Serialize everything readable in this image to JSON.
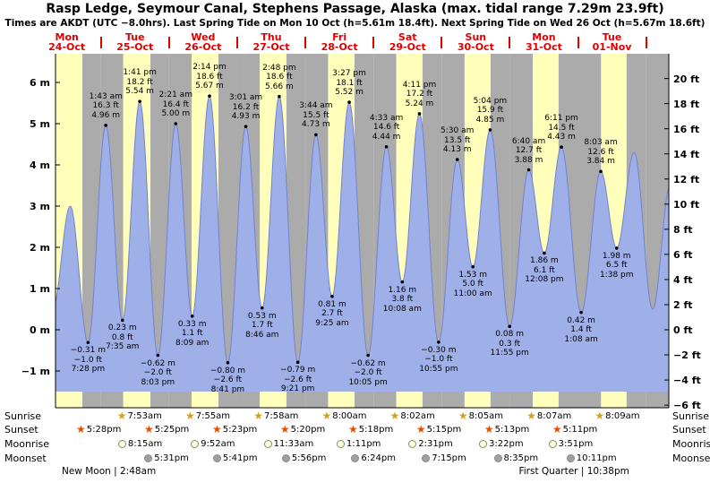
{
  "header": {
    "title": "Rasp Ledge, Seymour Canal, Stephens Passage, Alaska (max. tidal range 7.29m 23.9ft)",
    "subtitle": "Times are AKDT (UTC −8.0hrs). Last Spring Tide on Mon 10 Oct (h=5.61m 18.4ft). Next Spring Tide on Wed 26 Oct (h=5.67m 18.6ft)"
  },
  "chart_data": {
    "type": "area",
    "title": "Tide height forecast with day/night bands",
    "days": [
      {
        "dow": "Mon",
        "date": "24-Oct"
      },
      {
        "dow": "Tue",
        "date": "25-Oct"
      },
      {
        "dow": "Wed",
        "date": "26-Oct"
      },
      {
        "dow": "Thu",
        "date": "27-Oct"
      },
      {
        "dow": "Fri",
        "date": "28-Oct"
      },
      {
        "dow": "Sat",
        "date": "29-Oct"
      },
      {
        "dow": "Sun",
        "date": "30-Oct"
      },
      {
        "dow": "Mon",
        "date": "31-Oct"
      },
      {
        "dow": "Tue",
        "date": "01-Nov"
      }
    ],
    "y_axis_left": [
      {
        "v": 6,
        "label": "6 m"
      },
      {
        "v": 5,
        "label": "5 m"
      },
      {
        "v": 4,
        "label": "4 m"
      },
      {
        "v": 3,
        "label": "3 m"
      },
      {
        "v": 2,
        "label": "2 m"
      },
      {
        "v": 1,
        "label": "1 m"
      },
      {
        "v": 0,
        "label": "0 m"
      },
      {
        "v": -1,
        "label": "−1 m"
      }
    ],
    "y_axis_right": [
      {
        "v": 20,
        "label": "20 ft"
      },
      {
        "v": 18,
        "label": "18 ft"
      },
      {
        "v": 16,
        "label": "16 ft"
      },
      {
        "v": 14,
        "label": "14 ft"
      },
      {
        "v": 12,
        "label": "12 ft"
      },
      {
        "v": 10,
        "label": "10 ft"
      },
      {
        "v": 8,
        "label": "8 ft"
      },
      {
        "v": 6,
        "label": "6 ft"
      },
      {
        "v": 4,
        "label": "4 ft"
      },
      {
        "v": 2,
        "label": "2 ft"
      },
      {
        "v": 0,
        "label": "0 ft"
      },
      {
        "v": -2,
        "label": "−2 ft"
      },
      {
        "v": -4,
        "label": "−4 ft"
      },
      {
        "v": -6,
        "label": "−6 ft"
      }
    ],
    "time_range_hours": [
      8,
      224
    ],
    "daylight": [
      {
        "sr": 8.0,
        "ss": 17.47
      },
      {
        "sr": 7.88,
        "ss": 17.42
      },
      {
        "sr": 7.92,
        "ss": 17.38
      },
      {
        "sr": 7.97,
        "ss": 17.33
      },
      {
        "sr": 8.0,
        "ss": 17.3
      },
      {
        "sr": 8.03,
        "ss": 17.25
      },
      {
        "sr": 8.08,
        "ss": 17.22
      },
      {
        "sr": 8.12,
        "ss": 17.18
      },
      {
        "sr": 8.15,
        "ss": 17.13
      },
      {
        "sr": 8.18,
        "ss": 17.1
      }
    ],
    "tide_events": [
      {
        "type": "low",
        "day": 0,
        "hour": 19.47,
        "m": -0.31,
        "lines": [
          "−0.31 m",
          "−1.0 ft",
          "7:28 pm"
        ]
      },
      {
        "type": "high",
        "day": 1,
        "hour": 1.72,
        "m": 4.96,
        "lines": [
          "1:43 am",
          "16.3 ft",
          "4.96 m"
        ]
      },
      {
        "type": "low",
        "day": 1,
        "hour": 7.58,
        "m": 0.23,
        "lines": [
          "0.23 m",
          "0.8 ft",
          "7:35 am"
        ]
      },
      {
        "type": "high",
        "day": 1,
        "hour": 13.68,
        "m": 5.54,
        "lines": [
          "1:41 pm",
          "18.2 ft",
          "5.54 m"
        ]
      },
      {
        "type": "low",
        "day": 1,
        "hour": 20.05,
        "m": -0.62,
        "lines": [
          "−0.62 m",
          "−2.0 ft",
          "8:03 pm"
        ]
      },
      {
        "type": "high",
        "day": 2,
        "hour": 2.35,
        "m": 5.0,
        "lines": [
          "2:21 am",
          "16.4 ft",
          "5.00 m"
        ]
      },
      {
        "type": "low",
        "day": 2,
        "hour": 8.15,
        "m": 0.33,
        "lines": [
          "0.33 m",
          "1.1 ft",
          "8:09 am"
        ]
      },
      {
        "type": "high",
        "day": 2,
        "hour": 14.23,
        "m": 5.67,
        "lines": [
          "2:14 pm",
          "18.6 ft",
          "5.67 m"
        ]
      },
      {
        "type": "low",
        "day": 2,
        "hour": 20.68,
        "m": -0.8,
        "lines": [
          "−0.80 m",
          "−2.6 ft",
          "8:41 pm"
        ]
      },
      {
        "type": "high",
        "day": 3,
        "hour": 3.02,
        "m": 4.93,
        "lines": [
          "3:01 am",
          "16.2 ft",
          "4.93 m"
        ]
      },
      {
        "type": "low",
        "day": 3,
        "hour": 8.77,
        "m": 0.53,
        "lines": [
          "0.53 m",
          "1.7 ft",
          "8:46 am"
        ]
      },
      {
        "type": "high",
        "day": 3,
        "hour": 14.8,
        "m": 5.66,
        "lines": [
          "2:48 pm",
          "18.6 ft",
          "5.66 m"
        ]
      },
      {
        "type": "low",
        "day": 3,
        "hour": 21.35,
        "m": -0.79,
        "lines": [
          "−0.79 m",
          "−2.6 ft",
          "9:21 pm"
        ]
      },
      {
        "type": "high",
        "day": 4,
        "hour": 3.73,
        "m": 4.73,
        "lines": [
          "3:44 am",
          "15.5 ft",
          "4.73 m"
        ]
      },
      {
        "type": "low",
        "day": 4,
        "hour": 9.42,
        "m": 0.81,
        "lines": [
          "0.81 m",
          "2.7 ft",
          "9:25 am"
        ]
      },
      {
        "type": "high",
        "day": 4,
        "hour": 15.45,
        "m": 5.52,
        "lines": [
          "3:27 pm",
          "18.1 ft",
          "5.52 m"
        ]
      },
      {
        "type": "low",
        "day": 4,
        "hour": 22.08,
        "m": -0.62,
        "lines": [
          "−0.62 m",
          "−2.0 ft",
          "10:05 pm"
        ]
      },
      {
        "type": "high",
        "day": 5,
        "hour": 4.55,
        "m": 4.44,
        "lines": [
          "4:33 am",
          "14.6 ft",
          "4.44 m"
        ]
      },
      {
        "type": "low",
        "day": 5,
        "hour": 10.13,
        "m": 1.16,
        "lines": [
          "1.16 m",
          "3.8 ft",
          "10:08 am"
        ]
      },
      {
        "type": "high",
        "day": 5,
        "hour": 16.18,
        "m": 5.24,
        "lines": [
          "4:11 pm",
          "17.2 ft",
          "5.24 m"
        ]
      },
      {
        "type": "low",
        "day": 5,
        "hour": 22.92,
        "m": -0.3,
        "lines": [
          "−0.30 m",
          "−1.0 ft",
          "10:55 pm"
        ]
      },
      {
        "type": "high",
        "day": 6,
        "hour": 5.5,
        "m": 4.13,
        "lines": [
          "5:30 am",
          "13.5 ft",
          "4.13 m"
        ]
      },
      {
        "type": "low",
        "day": 6,
        "hour": 11.0,
        "m": 1.53,
        "lines": [
          "1.53 m",
          "5.0 ft",
          "11:00 am"
        ]
      },
      {
        "type": "high",
        "day": 6,
        "hour": 17.07,
        "m": 4.85,
        "lines": [
          "5:04 pm",
          "15.9 ft",
          "4.85 m"
        ]
      },
      {
        "type": "low",
        "day": 6,
        "hour": 23.92,
        "m": 0.08,
        "lines": [
          "0.08 m",
          "0.3 ft",
          "11:55 pm"
        ]
      },
      {
        "type": "high",
        "day": 7,
        "hour": 6.67,
        "m": 3.88,
        "lines": [
          "6:40 am",
          "12.7 ft",
          "3.88 m"
        ]
      },
      {
        "type": "low",
        "day": 7,
        "hour": 12.13,
        "m": 1.86,
        "lines": [
          "1.86 m",
          "6.1 ft",
          "12:08 pm"
        ]
      },
      {
        "type": "high",
        "day": 7,
        "hour": 18.18,
        "m": 4.43,
        "lines": [
          "6:11 pm",
          "14.5 ft",
          "4.43 m"
        ]
      },
      {
        "type": "low",
        "day": 8,
        "hour": 1.13,
        "m": 0.42,
        "lines": [
          "0.42 m",
          "1.4 ft",
          "1:08 am"
        ]
      },
      {
        "type": "high",
        "day": 8,
        "hour": 8.05,
        "m": 3.84,
        "lines": [
          "8:03 am",
          "12.6 ft",
          "3.84 m"
        ]
      },
      {
        "type": "low",
        "day": 8,
        "hour": 13.63,
        "m": 1.98,
        "lines": [
          "1.98 m",
          "6.5 ft",
          "1:38 pm"
        ]
      }
    ],
    "curve_padding_points": [
      {
        "day": 0,
        "hour": 7.0,
        "m": 0.5
      },
      {
        "day": 0,
        "hour": 13.2,
        "m": 3.0
      },
      {
        "day": 8,
        "hour": 19.8,
        "m": 4.3
      },
      {
        "day": 9,
        "hour": 2.3,
        "m": 0.5
      },
      {
        "day": 9,
        "hour": 8.5,
        "m": 3.5
      }
    ]
  },
  "sun_moon": {
    "row_labels": {
      "sunrise": "Sunrise",
      "sunset": "Sunset",
      "moonrise": "Moonrise",
      "moonset": "Moonset"
    },
    "sunrise": [
      {
        "day": 1,
        "hour": 7.88,
        "label": "7:53am"
      },
      {
        "day": 2,
        "hour": 7.92,
        "label": "7:55am"
      },
      {
        "day": 3,
        "hour": 7.97,
        "label": "7:58am"
      },
      {
        "day": 4,
        "hour": 8.0,
        "label": "8:00am"
      },
      {
        "day": 5,
        "hour": 8.03,
        "label": "8:02am"
      },
      {
        "day": 6,
        "hour": 8.08,
        "label": "8:05am"
      },
      {
        "day": 7,
        "hour": 8.12,
        "label": "8:07am"
      },
      {
        "day": 8,
        "hour": 8.15,
        "label": "8:09am"
      }
    ],
    "sunset": [
      {
        "day": 0,
        "hour": 17.47,
        "label": "5:28pm"
      },
      {
        "day": 1,
        "hour": 17.42,
        "label": "5:25pm"
      },
      {
        "day": 2,
        "hour": 17.38,
        "label": "5:23pm"
      },
      {
        "day": 3,
        "hour": 17.33,
        "label": "5:20pm"
      },
      {
        "day": 4,
        "hour": 17.3,
        "label": "5:18pm"
      },
      {
        "day": 5,
        "hour": 17.25,
        "label": "5:15pm"
      },
      {
        "day": 6,
        "hour": 17.22,
        "label": "5:13pm"
      },
      {
        "day": 7,
        "hour": 17.18,
        "label": "5:11pm"
      }
    ],
    "moonrise": [
      {
        "day": 1,
        "hour": 8.25,
        "label": "8:15am"
      },
      {
        "day": 2,
        "hour": 9.87,
        "label": "9:52am"
      },
      {
        "day": 3,
        "hour": 11.55,
        "label": "11:33am"
      },
      {
        "day": 4,
        "hour": 13.18,
        "label": "1:11pm"
      },
      {
        "day": 5,
        "hour": 14.52,
        "label": "2:31pm"
      },
      {
        "day": 6,
        "hour": 15.37,
        "label": "3:22pm"
      },
      {
        "day": 7,
        "hour": 15.85,
        "label": "3:51pm"
      }
    ],
    "moonset": [
      {
        "day": 1,
        "hour": 17.52,
        "label": "5:31pm"
      },
      {
        "day": 2,
        "hour": 17.68,
        "label": "5:41pm"
      },
      {
        "day": 3,
        "hour": 17.93,
        "label": "5:56pm"
      },
      {
        "day": 4,
        "hour": 18.4,
        "label": "6:24pm"
      },
      {
        "day": 5,
        "hour": 19.25,
        "label": "7:15pm"
      },
      {
        "day": 6,
        "hour": 20.58,
        "label": "8:35pm"
      },
      {
        "day": 7,
        "hour": 22.18,
        "label": "10:11pm"
      }
    ],
    "moon_phases": [
      {
        "label": "New Moon",
        "time": "2:48am",
        "day": 1,
        "hour": 2.8
      },
      {
        "label": "First Quarter",
        "time": "10:38pm",
        "day": 7,
        "hour": 22.63
      }
    ]
  },
  "colors": {
    "day_band": "#ffffbb",
    "night_band": "#ababab",
    "tide_fill": "#9fafe8",
    "tide_stroke": "#7183d0",
    "day_label": "#e00000",
    "annotation": "#000000",
    "axis": "#000000",
    "sunrise_icon": "#d4a017",
    "sunset_icon": "#e05000",
    "moonrise_icon": "#ffffd0",
    "moonset_icon": "#a0a0a0"
  }
}
